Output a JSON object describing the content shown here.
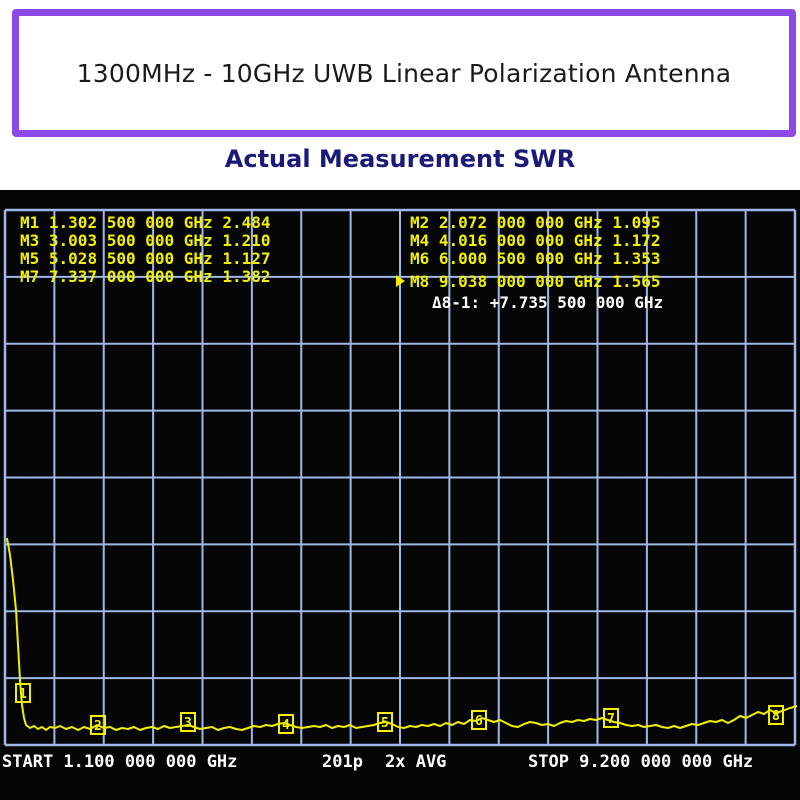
{
  "header": {
    "title": "1300MHz - 10GHz UWB Linear Polarization Antenna",
    "subtitle": "Actual Measurement SWR"
  },
  "markers": [
    {
      "label": "M1",
      "freq": "1.302 500 000 GHz",
      "value": "2.484"
    },
    {
      "label": "M2",
      "freq": "2.072 000 000 GHz",
      "value": "1.095"
    },
    {
      "label": "M3",
      "freq": "3.003 500 000 GHz",
      "value": "1.210"
    },
    {
      "label": "M4",
      "freq": "4.016 000 000 GHz",
      "value": "1.172"
    },
    {
      "label": "M5",
      "freq": "5.028 500 000 GHz",
      "value": "1.127"
    },
    {
      "label": "M6",
      "freq": "6.000 500 000 GHz",
      "value": "1.353"
    },
    {
      "label": "M7",
      "freq": "7.337 000 000 GHz",
      "value": "1.382"
    },
    {
      "label": "M8",
      "freq": "9.038 000 000 GHz",
      "value": "1.565"
    }
  ],
  "delta": "Δ8-1: +7.735 500 000 GHz",
  "status": {
    "start": "START 1.100 000 000 GHz",
    "points": "201p",
    "avg": "2x AVG",
    "stop": "STOP 9.200 000 000 GHz"
  },
  "marker_tags": [
    "1",
    "2",
    "3",
    "4",
    "5",
    "6",
    "7",
    "8"
  ],
  "colors": {
    "frame": "#8d49e8",
    "subtitle": "#1c1a78",
    "grid": "#9fb8e8",
    "trace": "#f0f000",
    "screen": "#050505"
  }
}
